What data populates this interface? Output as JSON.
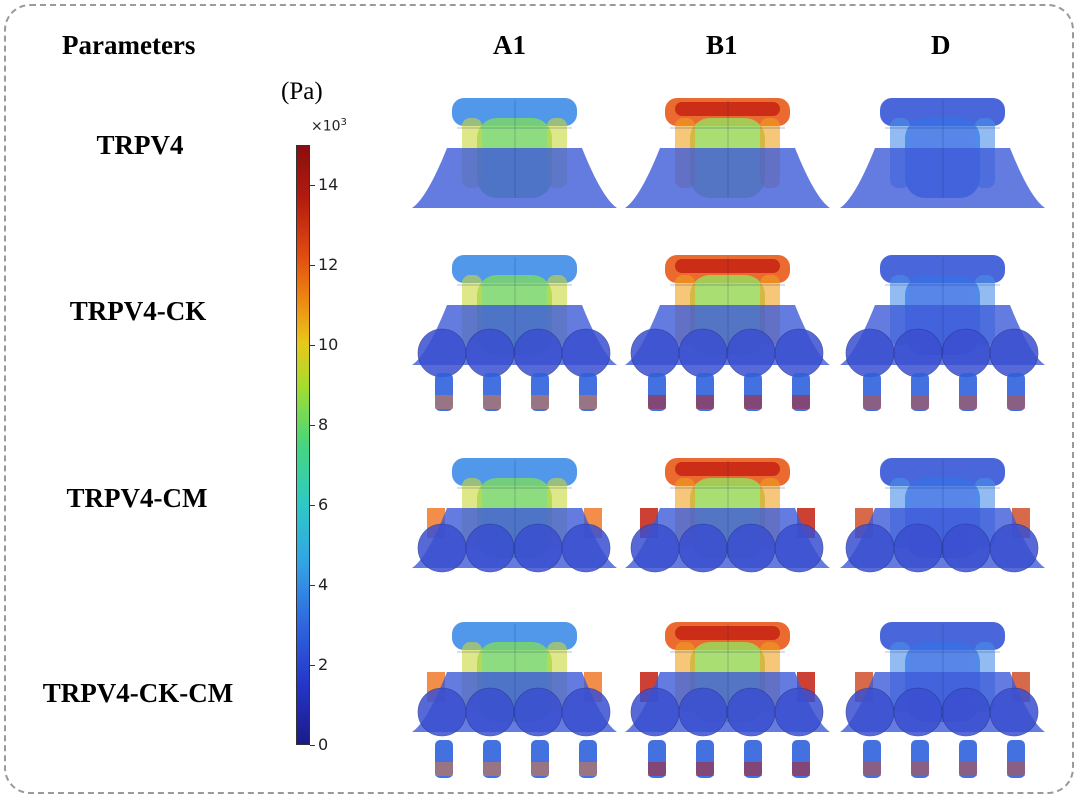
{
  "headers": {
    "parameters": "Parameters",
    "col_a1": "A1",
    "col_b1": "B1",
    "col_d": "D"
  },
  "rows": [
    "TRPV4",
    "TRPV4-CK",
    "TRPV4-CM",
    "TRPV4-CK-CM"
  ],
  "colorbar": {
    "unit": "(Pa)",
    "scale": "×10",
    "scale_exp": "3",
    "ticks": [
      "14",
      "12",
      "10",
      "8",
      "6",
      "4",
      "2",
      "0"
    ],
    "colors": [
      "#1b1a8a",
      "#2436c8",
      "#2f66e0",
      "#33a2e6",
      "#2ec9c6",
      "#45d67e",
      "#a6dc2e",
      "#e8c81c",
      "#ee8a12",
      "#e04a10",
      "#8a0e0e"
    ]
  },
  "models": [
    {
      "row": "TRPV4",
      "col": "A1",
      "feet": 0,
      "wings": false,
      "hot": "green"
    },
    {
      "row": "TRPV4",
      "col": "B1",
      "feet": 0,
      "wings": false,
      "hot": "red"
    },
    {
      "row": "TRPV4",
      "col": "D",
      "feet": 0,
      "wings": false,
      "hot": "blue"
    },
    {
      "row": "TRPV4-CK",
      "col": "A1",
      "feet": 4,
      "wings": false,
      "hot": "green"
    },
    {
      "row": "TRPV4-CK",
      "col": "B1",
      "feet": 4,
      "wings": false,
      "hot": "red"
    },
    {
      "row": "TRPV4-CK",
      "col": "D",
      "feet": 4,
      "wings": false,
      "hot": "blue"
    },
    {
      "row": "TRPV4-CM",
      "col": "A1",
      "feet": 0,
      "wings": true,
      "hot": "green"
    },
    {
      "row": "TRPV4-CM",
      "col": "B1",
      "feet": 0,
      "wings": true,
      "hot": "red"
    },
    {
      "row": "TRPV4-CM",
      "col": "D",
      "feet": 0,
      "wings": true,
      "hot": "blue"
    },
    {
      "row": "TRPV4-CK-CM",
      "col": "A1",
      "feet": 4,
      "wings": true,
      "hot": "green"
    },
    {
      "row": "TRPV4-CK-CM",
      "col": "B1",
      "feet": 4,
      "wings": true,
      "hot": "red"
    },
    {
      "row": "TRPV4-CK-CM",
      "col": "D",
      "feet": 4,
      "wings": true,
      "hot": "blue"
    }
  ]
}
